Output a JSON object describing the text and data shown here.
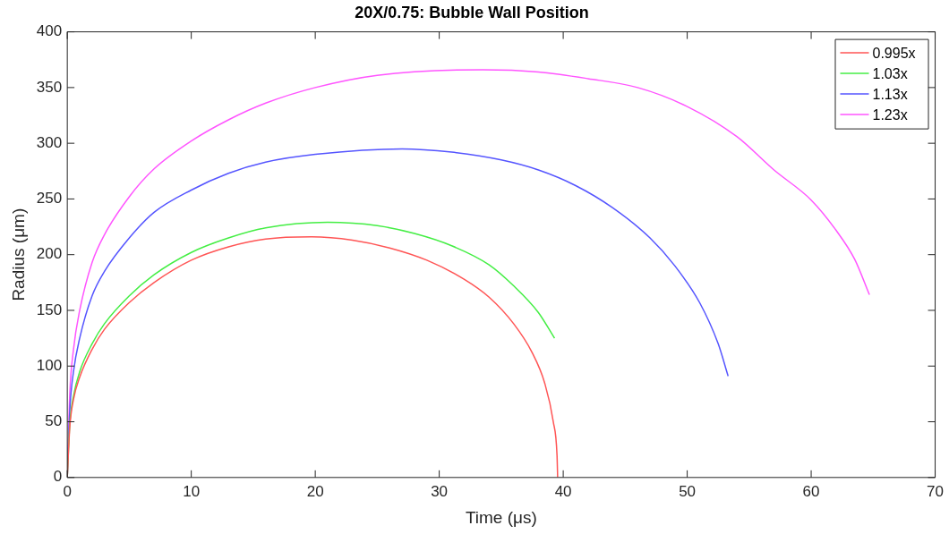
{
  "chart_data": {
    "type": "line",
    "title": "20X/0.75: Bubble Wall Position",
    "xlabel": "Time (μs)",
    "ylabel": "Radius (μm)",
    "xlim": [
      0,
      70
    ],
    "xticks": [
      0,
      10,
      20,
      30,
      40,
      50,
      60,
      70
    ],
    "ylim": [
      0,
      400
    ],
    "yticks": [
      0,
      50,
      100,
      150,
      200,
      250,
      300,
      350,
      400
    ],
    "grid": false,
    "legend": "top right",
    "marker": "none",
    "line_style": "solid",
    "series": [
      {
        "name": "0.995x",
        "color": "#ff5555",
        "x": [
          0,
          0.2,
          0.5,
          1,
          2,
          3,
          5,
          7,
          10,
          13,
          16,
          19.7,
          23,
          26,
          29,
          32,
          34,
          36,
          37.5,
          38.5,
          39.2,
          39.5,
          39.55
        ],
        "values": [
          0,
          45,
          70,
          90,
          115,
          133,
          157,
          175,
          195,
          207,
          214,
          216,
          213,
          206,
          195,
          178,
          162,
          138,
          112,
          85,
          50,
          20,
          0
        ]
      },
      {
        "name": "1.03x",
        "color": "#44ee44",
        "x": [
          0,
          0.2,
          0.5,
          1,
          2,
          3,
          5,
          7,
          10,
          13,
          16,
          21,
          25,
          28,
          31,
          34,
          36,
          38,
          39.3
        ],
        "values": [
          0,
          48,
          73,
          95,
          120,
          138,
          163,
          182,
          202,
          215,
          224,
          229,
          226,
          219,
          208,
          191,
          172,
          148,
          125
        ]
      },
      {
        "name": "1.13x",
        "color": "#5555ff",
        "x": [
          0,
          0.2,
          0.5,
          1,
          2,
          3,
          5,
          7,
          10,
          13,
          16,
          20,
          27,
          31,
          35,
          38,
          41,
          44,
          47,
          49,
          51,
          52.5,
          53.3
        ],
        "values": [
          0,
          60,
          95,
          125,
          163,
          185,
          215,
          238,
          258,
          273,
          283,
          290,
          295,
          292,
          285,
          276,
          262,
          242,
          215,
          190,
          157,
          120,
          91
        ]
      },
      {
        "name": "1.23x",
        "color": "#ff55ff",
        "x": [
          0,
          0.2,
          0.5,
          1,
          2,
          3,
          5,
          7,
          10,
          13,
          16,
          20,
          25,
          33.5,
          38,
          42,
          46,
          50,
          54,
          57,
          60,
          62,
          63.5,
          64.7
        ],
        "values": [
          0,
          75,
          115,
          150,
          193,
          218,
          252,
          277,
          302,
          321,
          336,
          350,
          361,
          366,
          364,
          358,
          350,
          333,
          306,
          276,
          249,
          222,
          196,
          164
        ]
      }
    ]
  }
}
